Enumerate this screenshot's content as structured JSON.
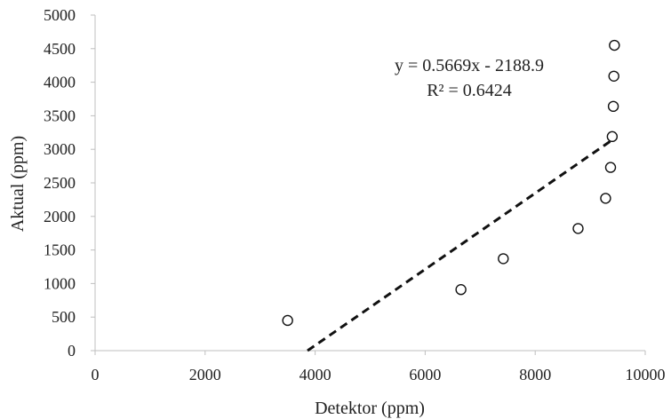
{
  "chart_data": {
    "type": "scatter",
    "xlabel": "Detektor (ppm)",
    "ylabel": "Aktual (ppm)",
    "xlim": [
      0,
      10000
    ],
    "ylim": [
      0,
      5000
    ],
    "xticks": [
      "0",
      "2000",
      "4000",
      "6000",
      "8000",
      "10000"
    ],
    "yticks": [
      "0",
      "500",
      "1000",
      "1500",
      "2000",
      "2500",
      "3000",
      "3500",
      "4000",
      "4500",
      "5000"
    ],
    "grid": false,
    "legend": "none",
    "marker": "open-circle",
    "series": [
      {
        "x": [
          3500,
          6650,
          7420,
          8780,
          9280,
          9370,
          9400,
          9420,
          9430,
          9440
        ],
        "y": [
          450,
          910,
          1370,
          1820,
          2270,
          2730,
          3190,
          3640,
          4090,
          4550
        ]
      }
    ],
    "trendline": {
      "type": "linear",
      "slope": 0.5669,
      "intercept": -2188.9,
      "style": "dashed",
      "equation": "y = 0.5669x - 2188.9",
      "r_squared": "R² = 0.6424"
    }
  }
}
